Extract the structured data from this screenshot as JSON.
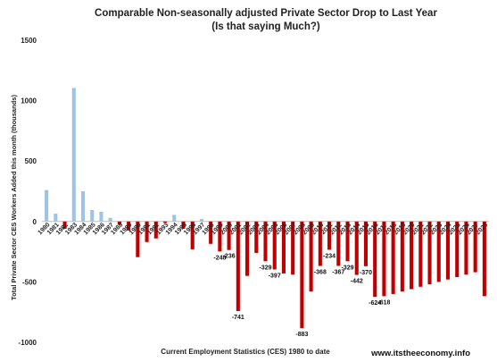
{
  "chart_data": {
    "type": "bar",
    "title": "Comparable Non-seasonally adjusted Private Sector Drop to Last Year",
    "subtitle": "(Is that saying Much?)",
    "xlabel": "Current Employment Statistics (CES) 1980 to date",
    "ylabel": "Total Private Sector CES Workers Added this month (thousands)",
    "credit": "www.itstheeconomy.info",
    "ylim": [
      -1000,
      1500
    ],
    "yticks": [
      1500,
      1000,
      500,
      0,
      -500,
      -1000
    ],
    "grid": false,
    "colors": {
      "positive": "#9DC3E6",
      "negative": "#C00000"
    },
    "categories": [
      "1980",
      "1981",
      "1982",
      "1983",
      "1984",
      "1985",
      "1986",
      "1987",
      "1988",
      "1989",
      "1990",
      "1991",
      "1992",
      "1993",
      "1994",
      "1995",
      "1996",
      "1997",
      "1998",
      "1999",
      "2000",
      "2001",
      "2002",
      "2003",
      "2004",
      "2005",
      "2006",
      "2007",
      "2008",
      "2009",
      "2010",
      "2011",
      "2012",
      "2013",
      "2014",
      "2015",
      "2016",
      "2017",
      "2018",
      "2019",
      "2020",
      "2021",
      "2022",
      "2023",
      "2024",
      "2025",
      "2026",
      "2027",
      "2028"
    ],
    "category_labels": [
      "1980",
      "1981",
      "1982",
      "1983",
      "1984",
      "1985",
      "1986",
      "1987",
      "1988",
      "1989",
      "1990",
      "1991",
      "1992",
      "1993",
      "1994",
      "1995",
      "1996",
      "1997",
      "1998",
      "1999",
      "2000",
      "2001",
      "2002",
      "2003",
      "2004",
      "2005",
      "2006",
      "2007",
      "2008",
      "2009",
      "2010",
      "2011",
      "2012",
      "2013",
      "2014",
      "2015",
      "2016",
      "2017",
      "2018",
      "2019",
      "2020",
      "2021",
      "2022",
      "2023",
      "2024",
      "2025",
      "2026",
      "2027",
      "2028"
    ],
    "values": [
      260,
      65,
      -60,
      1105,
      250,
      95,
      80,
      30,
      -25,
      -75,
      -295,
      -170,
      -140,
      -10,
      55,
      -60,
      -230,
      20,
      -185,
      -248,
      -236,
      -741,
      -450,
      -260,
      -329,
      -397,
      -430,
      -440,
      -883,
      -580,
      -368,
      -234,
      -367,
      -329,
      -442,
      -370,
      -624,
      -618,
      -600,
      -580,
      -560,
      -540,
      -520,
      -500,
      -480,
      -460,
      -440,
      -420,
      -618
    ],
    "data_labels": [
      "",
      "",
      "",
      "",
      "",
      "",
      "",
      "",
      "",
      "",
      "",
      "",
      "",
      "",
      "",
      "",
      "",
      "",
      "",
      "-248",
      "-236",
      "-741",
      "",
      "",
      "-329",
      "-397",
      "",
      "",
      "-883",
      "",
      "-368",
      "-234",
      "-367",
      "-329",
      "-442",
      "-370",
      "-624",
      "-618",
      "",
      "",
      "",
      "",
      "",
      "",
      "",
      "",
      "",
      "",
      ""
    ]
  }
}
